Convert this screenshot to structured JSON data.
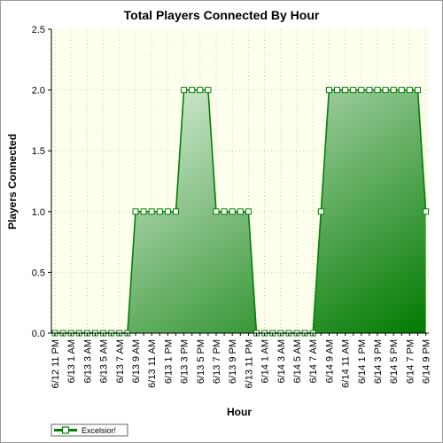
{
  "chart_data": {
    "type": "area",
    "title": "Total Players Connected By Hour",
    "xlabel": "Hour",
    "ylabel": "Players Connected",
    "ylim": [
      0,
      2.5
    ],
    "yticks": [
      "0.0",
      "0.5",
      "1.0",
      "1.5",
      "2.0",
      "2.5"
    ],
    "grid": true,
    "legend_position": "bottom-left",
    "colors": {
      "fill_light": "#f4faf2",
      "fill_dark": "#007a00",
      "line": "#008000",
      "plot_bg": "#ffffee"
    },
    "x_labels": [
      "6/12 11 PM",
      "6/13 1 AM",
      "6/13 3 AM",
      "6/13 5 AM",
      "6/13 7 AM",
      "6/13 9 AM",
      "6/13 11 AM",
      "6/13 1 PM",
      "6/13 3 PM",
      "6/13 5 PM",
      "6/13 7 PM",
      "6/13 9 PM",
      "6/13 11 PM",
      "6/14 1 AM",
      "6/14 3 AM",
      "6/14 5 AM",
      "6/14 7 AM",
      "6/14 9 AM",
      "6/14 11 AM",
      "6/14 1 PM",
      "6/14 3 PM",
      "6/14 5 PM",
      "6/14 7 PM",
      "6/14 9 PM"
    ],
    "series": [
      {
        "name": "Excelsior!",
        "values": [
          0,
          0,
          0,
          0,
          0,
          0,
          0,
          0,
          0,
          0,
          1,
          1,
          1,
          1,
          1,
          1,
          2,
          2,
          2,
          2,
          1,
          1,
          1,
          1,
          1,
          0,
          0,
          0,
          0,
          0,
          0,
          0,
          0,
          1,
          2,
          2,
          2,
          2,
          2,
          2,
          2,
          2,
          2,
          2,
          2,
          2,
          1
        ]
      }
    ]
  }
}
